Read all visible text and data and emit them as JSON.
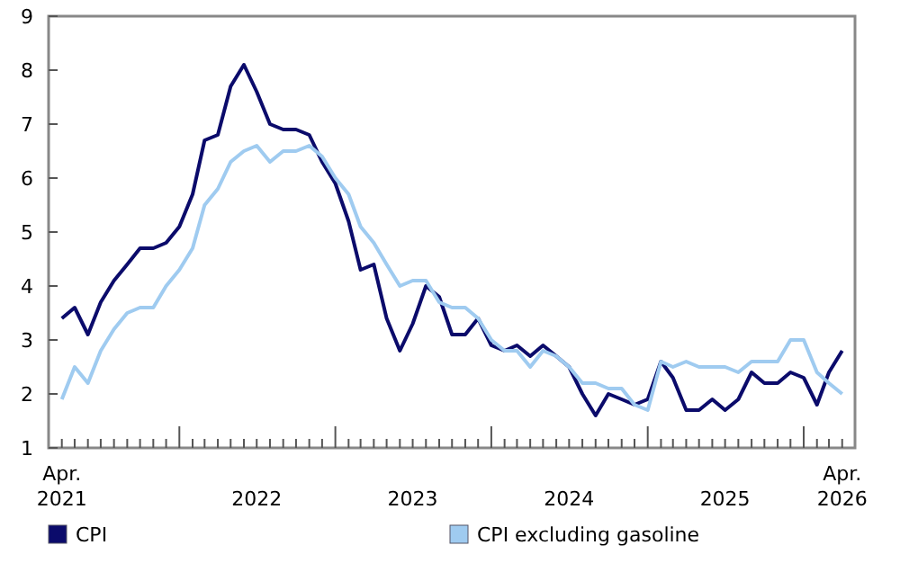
{
  "chart_data": {
    "type": "line",
    "x": [
      "2021-04",
      "2021-05",
      "2021-06",
      "2021-07",
      "2021-08",
      "2021-09",
      "2021-10",
      "2021-11",
      "2021-12",
      "2022-01",
      "2022-02",
      "2022-03",
      "2022-04",
      "2022-05",
      "2022-06",
      "2022-07",
      "2022-08",
      "2022-09",
      "2022-10",
      "2022-11",
      "2022-12",
      "2023-01",
      "2023-02",
      "2023-03",
      "2023-04",
      "2023-05",
      "2023-06",
      "2023-07",
      "2023-08",
      "2023-09",
      "2023-10",
      "2023-11",
      "2023-12",
      "2024-01",
      "2024-02",
      "2024-03",
      "2024-04",
      "2024-05",
      "2024-06",
      "2024-07",
      "2024-08",
      "2024-09",
      "2024-10",
      "2024-11",
      "2024-12",
      "2025-01",
      "2025-02",
      "2025-03",
      "2025-04",
      "2025-05",
      "2025-06",
      "2025-07",
      "2025-08",
      "2025-09",
      "2025-10",
      "2025-11",
      "2025-12",
      "2026-01",
      "2026-02",
      "2026-03",
      "2026-04"
    ],
    "series": [
      {
        "name": "CPI",
        "color": "#0b0b6b",
        "values": [
          3.4,
          3.6,
          3.1,
          3.7,
          4.1,
          4.4,
          4.7,
          4.7,
          4.8,
          5.1,
          5.7,
          6.7,
          6.8,
          7.7,
          8.1,
          7.6,
          7.0,
          6.9,
          6.9,
          6.8,
          6.3,
          5.9,
          5.2,
          4.3,
          4.4,
          3.4,
          2.8,
          3.3,
          4.0,
          3.8,
          3.1,
          3.1,
          3.4,
          2.9,
          2.8,
          2.9,
          2.7,
          2.9,
          2.7,
          2.5,
          2.0,
          1.6,
          2.0,
          1.9,
          1.8,
          1.9,
          2.6,
          2.3,
          1.7,
          1.7,
          1.9,
          1.7,
          1.9,
          2.4,
          2.2,
          2.2,
          2.4,
          2.3,
          1.8,
          2.4,
          2.8
        ]
      },
      {
        "name": "CPI excluding gasoline",
        "color": "#9fcbf0",
        "values": [
          1.9,
          2.5,
          2.2,
          2.8,
          3.2,
          3.5,
          3.6,
          3.6,
          4.0,
          4.3,
          4.7,
          5.5,
          5.8,
          6.3,
          6.5,
          6.6,
          6.3,
          6.5,
          6.5,
          6.6,
          6.4,
          6.0,
          5.7,
          5.1,
          4.8,
          4.4,
          4.0,
          4.1,
          4.1,
          3.7,
          3.6,
          3.6,
          3.4,
          3.0,
          2.8,
          2.8,
          2.5,
          2.8,
          2.7,
          2.5,
          2.2,
          2.2,
          2.1,
          2.1,
          1.8,
          1.7,
          2.6,
          2.5,
          2.6,
          2.5,
          2.5,
          2.5,
          2.4,
          2.6,
          2.6,
          2.6,
          3.0,
          3.0,
          2.4,
          2.2,
          2.0
        ]
      }
    ],
    "xlim": [
      "2021-03",
      "2026-05"
    ],
    "xticks": [
      {
        "value": "2021-04",
        "label": "Apr. 2021"
      },
      {
        "value": "2021-05",
        "label": null
      },
      {
        "value": "2021-06",
        "label": null
      },
      {
        "value": "2021-07",
        "label": null
      },
      {
        "value": "2021-08",
        "label": null
      },
      {
        "value": "2021-09",
        "label": null
      },
      {
        "value": "2021-10",
        "label": null
      },
      {
        "value": "2021-11",
        "label": null
      },
      {
        "value": "2021-12",
        "label": null
      },
      {
        "value": "2022-01",
        "label": null
      },
      {
        "value": "2022-02",
        "label": null
      },
      {
        "value": "2022-03",
        "label": null
      },
      {
        "value": "2022-04",
        "label": null
      },
      {
        "value": "2022-05",
        "label": null
      },
      {
        "value": "2022-06",
        "label": null
      },
      {
        "value": "2022-07",
        "label": "2022"
      },
      {
        "value": "2022-08",
        "label": null
      },
      {
        "value": "2022-09",
        "label": null
      },
      {
        "value": "2022-10",
        "label": null
      },
      {
        "value": "2022-11",
        "label": null
      },
      {
        "value": "2022-12",
        "label": null
      },
      {
        "value": "2023-01",
        "label": null
      },
      {
        "value": "2023-02",
        "label": null
      },
      {
        "value": "2023-03",
        "label": null
      },
      {
        "value": "2023-04",
        "label": null
      },
      {
        "value": "2023-05",
        "label": null
      },
      {
        "value": "2023-06",
        "label": null
      },
      {
        "value": "2023-07",
        "label": "2023"
      },
      {
        "value": "2023-08",
        "label": null
      },
      {
        "value": "2023-09",
        "label": null
      },
      {
        "value": "2023-10",
        "label": null
      },
      {
        "value": "2023-11",
        "label": null
      },
      {
        "value": "2023-12",
        "label": null
      },
      {
        "value": "2024-01",
        "label": null
      },
      {
        "value": "2024-02",
        "label": null
      },
      {
        "value": "2024-03",
        "label": null
      },
      {
        "value": "2024-04",
        "label": null
      },
      {
        "value": "2024-05",
        "label": null
      },
      {
        "value": "2024-06",
        "label": null
      },
      {
        "value": "2024-07",
        "label": "2024"
      },
      {
        "value": "2024-08",
        "label": null
      },
      {
        "value": "2024-09",
        "label": null
      },
      {
        "value": "2024-10",
        "label": null
      },
      {
        "value": "2024-11",
        "label": null
      },
      {
        "value": "2024-12",
        "label": null
      },
      {
        "value": "2025-01",
        "label": null
      },
      {
        "value": "2025-02",
        "label": null
      },
      {
        "value": "2025-03",
        "label": null
      },
      {
        "value": "2025-04",
        "label": null
      },
      {
        "value": "2025-05",
        "label": null
      },
      {
        "value": "2025-06",
        "label": null
      },
      {
        "value": "2025-07",
        "label": "2025"
      },
      {
        "value": "2025-08",
        "label": null
      },
      {
        "value": "2025-09",
        "label": null
      },
      {
        "value": "2025-10",
        "label": null
      },
      {
        "value": "2025-11",
        "label": null
      },
      {
        "value": "2025-12",
        "label": null
      },
      {
        "value": "2026-01",
        "label": null
      },
      {
        "value": "2026-02",
        "label": null
      },
      {
        "value": "2026-03",
        "label": null
      },
      {
        "value": "2026-04",
        "label": "Apr. 2026"
      }
    ],
    "ylim": [
      1,
      9
    ],
    "yticks": [
      1,
      2,
      3,
      4,
      5,
      6,
      7,
      8,
      9
    ],
    "grid": false,
    "legend": "bottom",
    "line_style": "solid",
    "marker": "none"
  }
}
